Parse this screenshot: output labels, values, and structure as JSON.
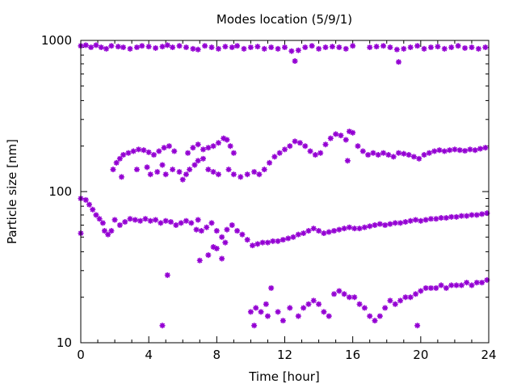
{
  "chart_data": {
    "type": "scatter",
    "title": "Modes location (5/9/1)",
    "xlabel": "Time [hour]",
    "ylabel": "Particle size [nm]",
    "xlim": [
      0,
      24
    ],
    "ylim": [
      10,
      1000
    ],
    "yscale": "log",
    "grid": false,
    "legend": "none",
    "marker": "star",
    "color": "#9400d3",
    "x_ticks": [
      "0",
      "4",
      "8",
      "12",
      "16",
      "20",
      "24"
    ],
    "y_ticks": [
      "10",
      "100",
      "1000"
    ],
    "series": [
      {
        "points": [
          [
            0.0,
            920
          ],
          [
            0.3,
            930
          ],
          [
            0.6,
            900
          ],
          [
            0.9,
            930
          ],
          [
            1.2,
            900
          ],
          [
            1.5,
            880
          ],
          [
            1.8,
            920
          ],
          [
            2.2,
            910
          ],
          [
            2.5,
            900
          ],
          [
            2.9,
            880
          ],
          [
            3.3,
            900
          ],
          [
            3.6,
            920
          ],
          [
            4.0,
            910
          ],
          [
            4.4,
            890
          ],
          [
            4.8,
            910
          ],
          [
            5.1,
            930
          ],
          [
            5.4,
            900
          ],
          [
            5.8,
            920
          ],
          [
            6.2,
            900
          ],
          [
            6.6,
            880
          ],
          [
            6.9,
            870
          ],
          [
            7.3,
            920
          ],
          [
            7.7,
            900
          ],
          [
            8.1,
            880
          ],
          [
            8.5,
            910
          ],
          [
            8.9,
            900
          ],
          [
            9.2,
            920
          ],
          [
            9.6,
            880
          ],
          [
            10.0,
            900
          ],
          [
            10.4,
            910
          ],
          [
            10.8,
            880
          ],
          [
            11.2,
            900
          ],
          [
            11.6,
            880
          ],
          [
            12.0,
            900
          ],
          [
            12.4,
            850
          ],
          [
            12.6,
            730
          ],
          [
            12.8,
            860
          ],
          [
            13.2,
            900
          ],
          [
            13.6,
            920
          ],
          [
            14.0,
            880
          ],
          [
            14.4,
            900
          ],
          [
            14.8,
            910
          ],
          [
            15.2,
            900
          ],
          [
            15.6,
            880
          ],
          [
            16.0,
            920
          ],
          [
            17.0,
            900
          ],
          [
            17.4,
            910
          ],
          [
            17.8,
            920
          ],
          [
            18.2,
            900
          ],
          [
            18.6,
            870
          ],
          [
            18.7,
            720
          ],
          [
            19.0,
            880
          ],
          [
            19.4,
            900
          ],
          [
            19.8,
            920
          ],
          [
            20.2,
            880
          ],
          [
            20.6,
            900
          ],
          [
            21.0,
            910
          ],
          [
            21.4,
            880
          ],
          [
            21.8,
            900
          ],
          [
            22.2,
            920
          ],
          [
            22.6,
            890
          ],
          [
            23.0,
            900
          ],
          [
            23.4,
            880
          ],
          [
            23.8,
            900
          ]
        ]
      },
      {
        "points": [
          [
            1.9,
            140
          ],
          [
            2.1,
            155
          ],
          [
            2.3,
            165
          ],
          [
            2.5,
            175
          ],
          [
            2.8,
            180
          ],
          [
            3.1,
            185
          ],
          [
            3.4,
            190
          ],
          [
            3.7,
            188
          ],
          [
            4.0,
            182
          ],
          [
            4.3,
            175
          ],
          [
            4.6,
            185
          ],
          [
            4.9,
            195
          ],
          [
            5.2,
            200
          ],
          [
            5.5,
            185
          ],
          [
            2.4,
            125
          ],
          [
            3.3,
            140
          ],
          [
            3.9,
            145
          ],
          [
            4.1,
            130
          ],
          [
            4.5,
            135
          ],
          [
            4.8,
            150
          ],
          [
            5.0,
            130
          ],
          [
            5.4,
            140
          ],
          [
            5.8,
            135
          ],
          [
            6.0,
            120
          ],
          [
            6.2,
            130
          ],
          [
            6.4,
            140
          ],
          [
            6.7,
            150
          ],
          [
            6.9,
            160
          ],
          [
            7.2,
            165
          ],
          [
            7.5,
            140
          ],
          [
            7.8,
            135
          ],
          [
            8.1,
            130
          ],
          [
            6.3,
            180
          ],
          [
            6.6,
            195
          ],
          [
            6.9,
            205
          ],
          [
            7.2,
            190
          ],
          [
            7.5,
            195
          ],
          [
            7.8,
            200
          ],
          [
            8.1,
            210
          ],
          [
            8.4,
            225
          ],
          [
            8.6,
            220
          ],
          [
            8.8,
            200
          ],
          [
            9.0,
            180
          ],
          [
            8.7,
            140
          ],
          [
            9.0,
            130
          ],
          [
            9.4,
            125
          ],
          [
            9.8,
            130
          ],
          [
            10.2,
            135
          ],
          [
            10.5,
            130
          ],
          [
            10.8,
            140
          ],
          [
            11.1,
            155
          ],
          [
            11.4,
            170
          ],
          [
            11.7,
            180
          ],
          [
            12.0,
            190
          ],
          [
            12.3,
            200
          ],
          [
            12.6,
            215
          ],
          [
            12.9,
            210
          ],
          [
            13.2,
            200
          ],
          [
            13.5,
            185
          ],
          [
            13.8,
            175
          ],
          [
            14.1,
            180
          ],
          [
            14.4,
            205
          ],
          [
            14.7,
            225
          ],
          [
            15.0,
            240
          ],
          [
            15.3,
            235
          ],
          [
            15.6,
            220
          ],
          [
            15.8,
            250
          ],
          [
            16.0,
            245
          ],
          [
            15.7,
            160
          ],
          [
            16.3,
            200
          ],
          [
            16.6,
            185
          ],
          [
            16.9,
            175
          ],
          [
            17.2,
            180
          ],
          [
            17.5,
            175
          ],
          [
            17.8,
            180
          ],
          [
            18.1,
            175
          ],
          [
            18.4,
            170
          ],
          [
            18.7,
            180
          ],
          [
            19.0,
            178
          ],
          [
            19.3,
            175
          ],
          [
            19.6,
            170
          ],
          [
            19.9,
            165
          ],
          [
            20.2,
            175
          ],
          [
            20.5,
            180
          ],
          [
            20.8,
            185
          ],
          [
            21.1,
            188
          ],
          [
            21.4,
            185
          ],
          [
            21.7,
            188
          ],
          [
            22.0,
            190
          ],
          [
            22.3,
            188
          ],
          [
            22.6,
            186
          ],
          [
            22.9,
            190
          ],
          [
            23.2,
            188
          ],
          [
            23.5,
            192
          ],
          [
            23.8,
            195
          ]
        ]
      },
      {
        "points": [
          [
            0.0,
            90
          ],
          [
            0.3,
            88
          ],
          [
            0.5,
            82
          ],
          [
            0.7,
            76
          ],
          [
            0.9,
            70
          ],
          [
            1.1,
            66
          ],
          [
            1.3,
            62
          ],
          [
            1.4,
            55
          ],
          [
            1.6,
            52
          ],
          [
            1.8,
            55
          ],
          [
            2.0,
            65
          ],
          [
            2.3,
            60
          ],
          [
            2.6,
            63
          ],
          [
            2.9,
            66
          ],
          [
            3.2,
            65
          ],
          [
            3.5,
            64
          ],
          [
            3.8,
            66
          ],
          [
            4.1,
            64
          ],
          [
            4.4,
            65
          ],
          [
            4.7,
            62
          ],
          [
            5.0,
            64
          ],
          [
            5.3,
            63
          ],
          [
            5.6,
            60
          ],
          [
            5.9,
            62
          ],
          [
            6.2,
            64
          ],
          [
            6.5,
            62
          ],
          [
            6.8,
            56
          ],
          [
            7.1,
            55
          ],
          [
            7.4,
            58
          ],
          [
            7.7,
            62
          ],
          [
            8.0,
            55
          ],
          [
            8.3,
            50
          ],
          [
            8.6,
            56
          ],
          [
            8.9,
            60
          ],
          [
            9.2,
            55
          ],
          [
            9.5,
            52
          ],
          [
            9.8,
            48
          ],
          [
            10.1,
            44
          ],
          [
            10.4,
            45
          ],
          [
            10.7,
            46
          ],
          [
            11.0,
            46
          ],
          [
            11.3,
            47
          ],
          [
            11.6,
            47
          ],
          [
            11.9,
            48
          ],
          [
            12.2,
            49
          ],
          [
            12.5,
            50
          ],
          [
            12.8,
            52
          ],
          [
            13.1,
            53
          ],
          [
            13.4,
            55
          ],
          [
            13.7,
            57
          ],
          [
            14.0,
            55
          ],
          [
            14.3,
            53
          ],
          [
            14.6,
            54
          ],
          [
            14.9,
            55
          ],
          [
            15.2,
            56
          ],
          [
            15.5,
            57
          ],
          [
            15.8,
            58
          ],
          [
            16.1,
            57
          ],
          [
            16.4,
            57
          ],
          [
            16.7,
            58
          ],
          [
            17.0,
            59
          ],
          [
            17.3,
            60
          ],
          [
            17.6,
            61
          ],
          [
            17.9,
            60
          ],
          [
            18.2,
            61
          ],
          [
            18.5,
            62
          ],
          [
            18.8,
            62
          ],
          [
            19.1,
            63
          ],
          [
            19.4,
            64
          ],
          [
            19.7,
            65
          ],
          [
            20.0,
            64
          ],
          [
            20.3,
            65
          ],
          [
            20.6,
            66
          ],
          [
            20.9,
            66
          ],
          [
            21.2,
            67
          ],
          [
            21.5,
            67
          ],
          [
            21.8,
            68
          ],
          [
            22.1,
            68
          ],
          [
            22.4,
            69
          ],
          [
            22.7,
            69
          ],
          [
            23.0,
            70
          ],
          [
            23.3,
            70
          ],
          [
            23.6,
            71
          ],
          [
            23.9,
            72
          ],
          [
            0.0,
            53
          ],
          [
            7.0,
            35
          ],
          [
            7.5,
            38
          ],
          [
            8.0,
            42
          ],
          [
            8.5,
            46
          ],
          [
            7.8,
            43
          ],
          [
            8.3,
            36
          ],
          [
            6.9,
            65
          ]
        ]
      },
      {
        "points": [
          [
            4.8,
            13
          ],
          [
            5.1,
            28
          ],
          [
            10.0,
            16
          ],
          [
            10.3,
            17
          ],
          [
            10.6,
            16
          ],
          [
            10.9,
            18
          ],
          [
            11.2,
            23
          ],
          [
            10.2,
            13
          ],
          [
            11.0,
            15
          ],
          [
            11.6,
            16
          ],
          [
            11.9,
            14
          ],
          [
            12.3,
            17
          ],
          [
            12.8,
            15
          ],
          [
            13.1,
            17
          ],
          [
            13.4,
            18
          ],
          [
            13.7,
            19
          ],
          [
            14.0,
            18
          ],
          [
            14.3,
            16
          ],
          [
            14.6,
            15
          ],
          [
            14.9,
            21
          ],
          [
            15.2,
            22
          ],
          [
            15.5,
            21
          ],
          [
            15.8,
            20
          ],
          [
            16.1,
            20
          ],
          [
            16.4,
            18
          ],
          [
            16.7,
            17
          ],
          [
            17.0,
            15
          ],
          [
            17.3,
            14
          ],
          [
            17.6,
            15
          ],
          [
            17.9,
            17
          ],
          [
            18.2,
            19
          ],
          [
            18.5,
            18
          ],
          [
            18.8,
            19
          ],
          [
            19.1,
            20
          ],
          [
            19.4,
            20
          ],
          [
            19.7,
            21
          ],
          [
            20.0,
            22
          ],
          [
            20.3,
            23
          ],
          [
            20.6,
            23
          ],
          [
            20.9,
            23
          ],
          [
            21.2,
            24
          ],
          [
            21.5,
            23
          ],
          [
            21.8,
            24
          ],
          [
            22.1,
            24
          ],
          [
            22.4,
            24
          ],
          [
            22.7,
            25
          ],
          [
            23.0,
            24
          ],
          [
            23.3,
            25
          ],
          [
            23.6,
            25
          ],
          [
            23.9,
            26
          ],
          [
            19.8,
            13
          ]
        ]
      }
    ]
  }
}
